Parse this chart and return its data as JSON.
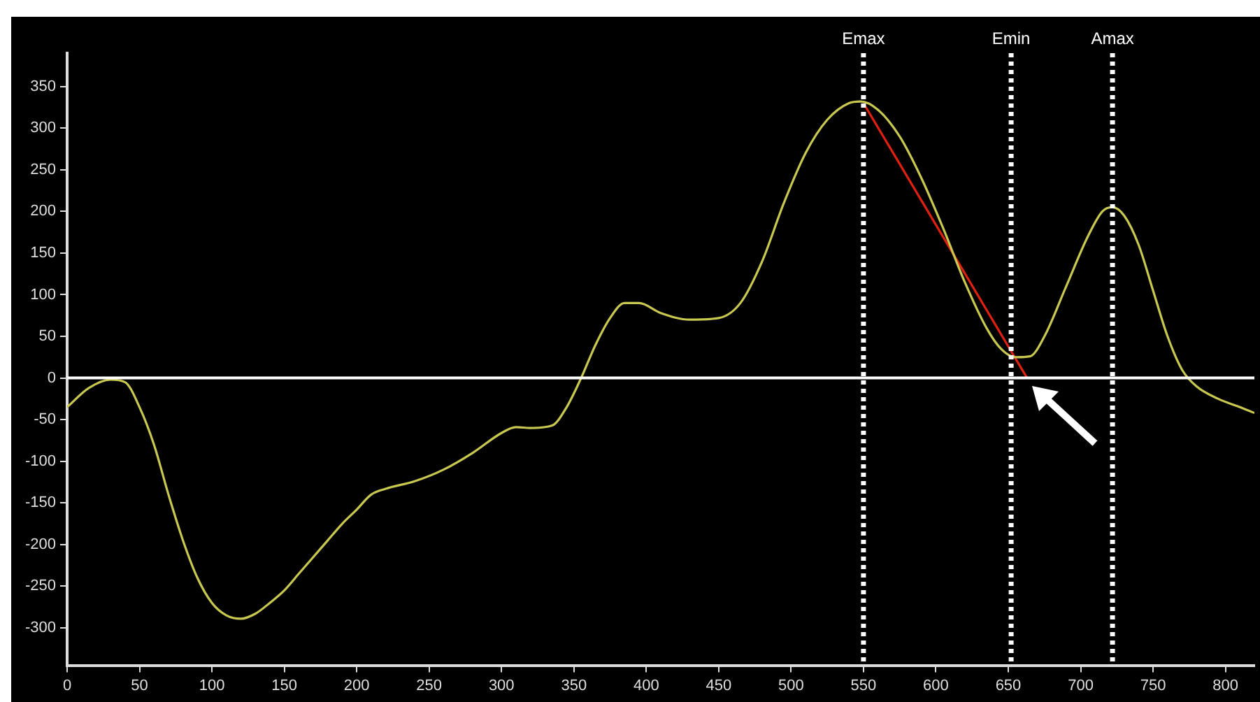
{
  "chart_data": {
    "type": "line",
    "xlim": [
      0,
      820
    ],
    "ylim": [
      -345,
      390
    ],
    "xticks": [
      0,
      50,
      100,
      150,
      200,
      250,
      300,
      350,
      400,
      450,
      500,
      550,
      600,
      650,
      700,
      750,
      800
    ],
    "yticks": [
      -300,
      -250,
      -200,
      -150,
      -100,
      -50,
      0,
      50,
      100,
      150,
      200,
      250,
      300,
      350
    ],
    "grid": false,
    "legend": false,
    "marker": "none",
    "line_style": "solid",
    "series": [
      {
        "color": "#c8c850",
        "x": [
          0,
          15,
          30,
          40,
          50,
          60,
          70,
          80,
          90,
          100,
          110,
          120,
          130,
          140,
          150,
          160,
          170,
          180,
          190,
          200,
          210,
          220,
          240,
          260,
          280,
          300,
          310,
          320,
          335,
          345,
          355,
          365,
          375,
          385,
          395,
          410,
          430,
          450,
          465,
          480,
          495,
          510,
          525,
          540,
          548,
          560,
          575,
          590,
          605,
          620,
          635,
          645,
          655,
          665,
          675,
          690,
          705,
          715,
          722,
          730,
          740,
          750,
          760,
          770,
          780,
          795,
          810,
          820
        ],
        "values": [
          -35,
          -12,
          -2,
          -5,
          -35,
          -80,
          -140,
          -195,
          -240,
          -270,
          -285,
          -289,
          -283,
          -270,
          -255,
          -235,
          -215,
          -195,
          -175,
          -158,
          -140,
          -133,
          -124,
          -110,
          -90,
          -66,
          -59,
          -60,
          -57,
          -35,
          0,
          40,
          72,
          90,
          90,
          78,
          70,
          72,
          90,
          140,
          210,
          270,
          310,
          330,
          332,
          322,
          290,
          240,
          180,
          115,
          60,
          35,
          25,
          26,
          50,
          110,
          170,
          200,
          205,
          195,
          160,
          105,
          50,
          10,
          -10,
          -25,
          -35,
          -42
        ]
      },
      {
        "color": "#e02010",
        "x": [
          550,
          663
        ],
        "values": [
          330,
          0
        ]
      }
    ],
    "ref_lines": [
      {
        "axis": "x",
        "value": 550,
        "label": "Emax",
        "color": "#ffffff",
        "line_style": "dotted"
      },
      {
        "axis": "x",
        "value": 652,
        "label": "Emin",
        "color": "#ffffff",
        "line_style": "dotted"
      },
      {
        "axis": "x",
        "value": 722,
        "label": "Amax",
        "color": "#ffffff",
        "line_style": "dotted"
      },
      {
        "axis": "y",
        "value": 0,
        "color": "#ffffff",
        "line_style": "solid"
      }
    ]
  }
}
